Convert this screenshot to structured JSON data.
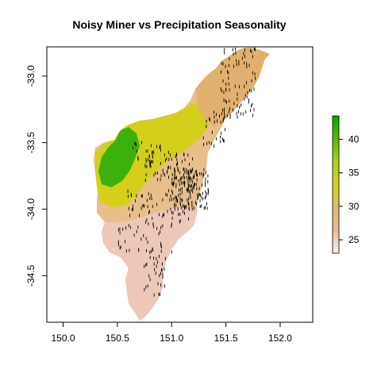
{
  "chart_data": {
    "type": "heatmap",
    "title": "Noisy Miner vs Precipitation Seasonality",
    "xlim": [
      149.85,
      152.3
    ],
    "ylim": [
      -34.85,
      -32.78
    ],
    "x_ticks": [
      150.0,
      150.5,
      151.0,
      151.5,
      152.0
    ],
    "x_tick_labels": [
      "150.0",
      "150.5",
      "151.0",
      "151.5",
      "152.0"
    ],
    "y_ticks": [
      -33.0,
      -33.5,
      -34.0,
      -34.5
    ],
    "y_tick_labels": [
      "-33.0",
      "-33.5",
      "-34.0",
      "-34.5"
    ],
    "legend": {
      "position": "right",
      "range": [
        23,
        43.5
      ],
      "ticks": [
        25,
        30,
        35,
        40
      ],
      "tick_labels": [
        "25",
        "30",
        "35",
        "40"
      ],
      "colors": [
        "#f2f2f2",
        "#ebb99a",
        "#dcbc6a",
        "#d9d21a",
        "#a9d30a",
        "#5ab80c",
        "#00a600"
      ]
    },
    "series": [
      {
        "name": "",
        "type": "points",
        "color": "#000000",
        "marker": "|"
      }
    ]
  }
}
